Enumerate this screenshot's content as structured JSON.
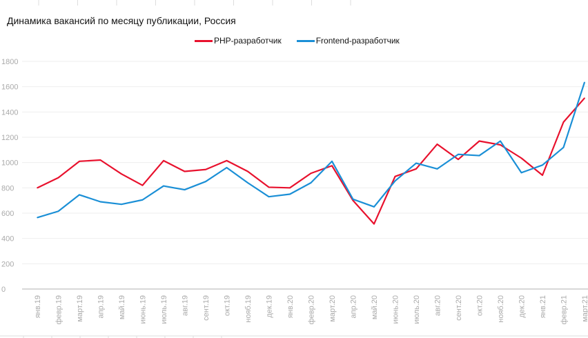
{
  "chart_data": {
    "type": "line",
    "title": "Динамика вакансий по месяцу публикации, Россия",
    "xlabel": "",
    "ylabel": "",
    "ylim": [
      0,
      1800
    ],
    "yticks": [
      0,
      200,
      400,
      600,
      800,
      1000,
      1200,
      1400,
      1600,
      1800
    ],
    "grid": true,
    "legend_position": "top",
    "categories": [
      "янв.19",
      "февр.19",
      "март.19",
      "апр.19",
      "май.19",
      "июнь.19",
      "июль.19",
      "авг.19",
      "сент.19",
      "окт.19",
      "нояб.19",
      "дек.19",
      "янв.20",
      "февр.20",
      "март.20",
      "апр.20",
      "май.20",
      "июнь.20",
      "июль.20",
      "авг.20",
      "сент.20",
      "окт.20",
      "нояб.20",
      "дек.20",
      "янв.21",
      "февр.21",
      "март.21"
    ],
    "series": [
      {
        "name": "PHP-разработчик",
        "color": "#e8112d",
        "values": [
          800,
          880,
          1010,
          1020,
          910,
          820,
          1015,
          930,
          945,
          1015,
          930,
          805,
          800,
          915,
          975,
          700,
          515,
          890,
          950,
          1145,
          1025,
          1170,
          1140,
          1035,
          900,
          1320,
          1510
        ]
      },
      {
        "name": "Frontend-разработчик",
        "color": "#1a8fd6",
        "values": [
          565,
          615,
          745,
          690,
          670,
          705,
          815,
          785,
          850,
          960,
          840,
          730,
          750,
          840,
          1010,
          710,
          650,
          855,
          995,
          950,
          1065,
          1055,
          1170,
          920,
          980,
          1120,
          1635
        ]
      }
    ]
  }
}
